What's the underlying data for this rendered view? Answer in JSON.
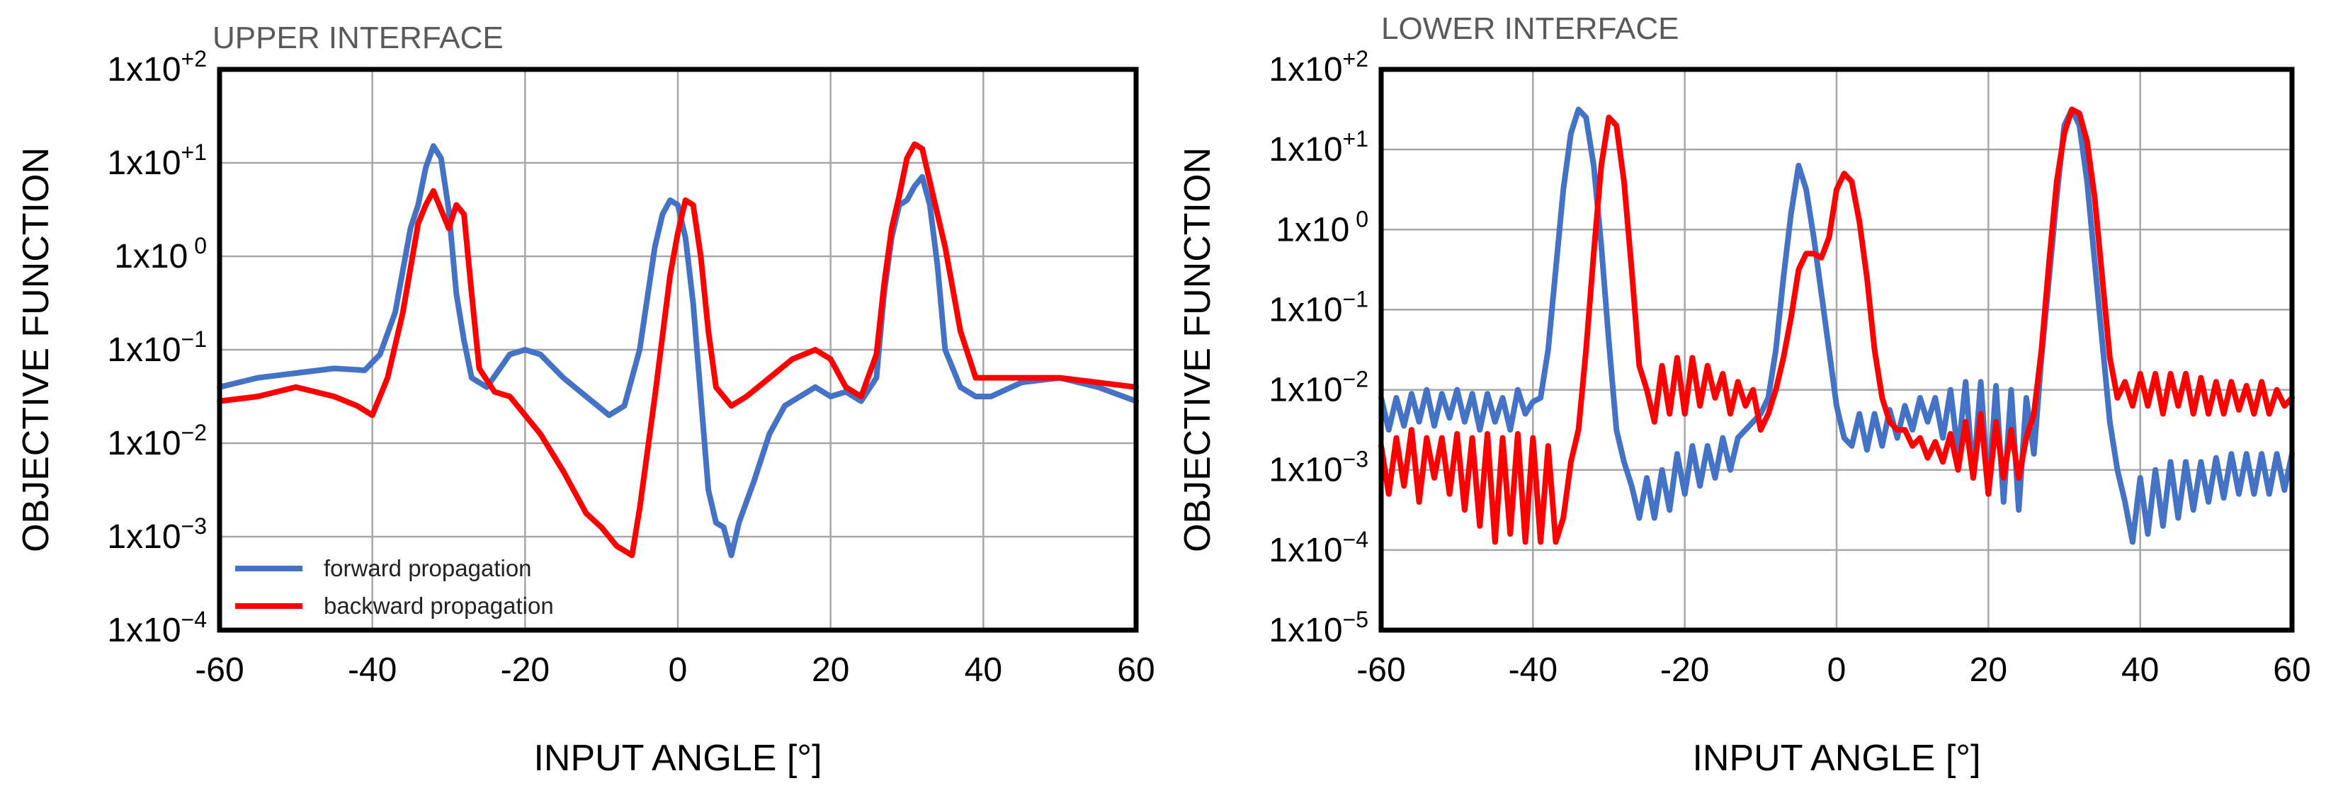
{
  "chart_data": [
    {
      "type": "line",
      "title": "UPPER INTERFACE",
      "xlabel": "INPUT ANGLE [°]",
      "ylabel": "OBJECTIVE FUNCTION",
      "xlim": [
        -60,
        60
      ],
      "ylim_log10": [
        -4,
        2
      ],
      "y_scale": "log",
      "grid": true,
      "x_ticks": [
        -60,
        -40,
        -20,
        0,
        20,
        40,
        60
      ],
      "x_tick_labels": [
        "-60",
        "-40",
        "-20",
        "0",
        "20",
        "40",
        "60"
      ],
      "y_ticks_log10": [
        2,
        1,
        0,
        -1,
        -2,
        -3,
        -4
      ],
      "y_tick_labels": [
        {
          "base": "1x10",
          "exp": "+2"
        },
        {
          "base": "1x10",
          "exp": "+1"
        },
        {
          "base": "1x10",
          "exp": " 0"
        },
        {
          "base": "1x10",
          "exp": "−1"
        },
        {
          "base": "1x10",
          "exp": "−2"
        },
        {
          "base": "1x10",
          "exp": "−3"
        },
        {
          "base": "1x10",
          "exp": "−4"
        }
      ],
      "legend": {
        "position": "bottom-left",
        "entries": [
          "forward propagation",
          "backward propagation"
        ]
      },
      "series": [
        {
          "name": "forward propagation",
          "color": "#4472C4",
          "x": [
            -60,
            -55,
            -50,
            -45,
            -41,
            -39,
            -37,
            -35,
            -34,
            -33,
            -32,
            -31,
            -30,
            -29,
            -28,
            -27,
            -25,
            -22,
            -20,
            -18,
            -15,
            -12,
            -9,
            -7,
            -5,
            -3,
            -2,
            -1,
            0,
            1,
            2,
            3,
            4,
            5,
            6,
            7,
            8,
            10,
            12,
            14,
            16,
            18,
            20,
            22,
            24,
            26,
            27,
            28,
            29,
            30,
            31,
            32,
            33,
            34,
            35,
            37,
            39,
            41,
            45,
            50,
            55,
            60
          ],
          "y_log10": [
            -1.4,
            -1.3,
            -1.25,
            -1.2,
            -1.22,
            -1.05,
            -0.6,
            0.3,
            0.55,
            0.95,
            1.18,
            1.05,
            0.5,
            -0.4,
            -0.9,
            -1.3,
            -1.4,
            -1.05,
            -1.0,
            -1.05,
            -1.3,
            -1.5,
            -1.7,
            -1.6,
            -1.0,
            0.1,
            0.45,
            0.6,
            0.55,
            0.2,
            -0.5,
            -1.5,
            -2.5,
            -2.85,
            -2.9,
            -3.2,
            -2.85,
            -2.4,
            -1.9,
            -1.6,
            -1.5,
            -1.4,
            -1.5,
            -1.45,
            -1.55,
            -1.3,
            -0.4,
            0.2,
            0.55,
            0.6,
            0.75,
            0.85,
            0.55,
            -0.1,
            -1.0,
            -1.4,
            -1.5,
            -1.5,
            -1.35,
            -1.3,
            -1.4,
            -1.55
          ]
        },
        {
          "name": "backward propagation",
          "color": "#FF0000",
          "x": [
            -60,
            -55,
            -50,
            -45,
            -42,
            -40,
            -38,
            -36,
            -34,
            -33,
            -32,
            -31,
            -30,
            -29,
            -28,
            -27,
            -26,
            -24,
            -22,
            -20,
            -18,
            -15,
            -12,
            -10,
            -8,
            -6,
            -5,
            -3,
            -1,
            0,
            1,
            2,
            3,
            4,
            5,
            7,
            9,
            12,
            15,
            18,
            20,
            22,
            24,
            26,
            27,
            28,
            29,
            30,
            31,
            32,
            33,
            34,
            35,
            37,
            39,
            41,
            45,
            50,
            55,
            60
          ],
          "y_log10": [
            -1.55,
            -1.5,
            -1.4,
            -1.5,
            -1.6,
            -1.7,
            -1.3,
            -0.6,
            0.35,
            0.55,
            0.7,
            0.5,
            0.3,
            0.55,
            0.45,
            -0.4,
            -1.2,
            -1.45,
            -1.5,
            -1.7,
            -1.9,
            -2.3,
            -2.75,
            -2.9,
            -3.1,
            -3.2,
            -2.7,
            -1.5,
            -0.2,
            0.25,
            0.6,
            0.55,
            0.0,
            -0.8,
            -1.4,
            -1.6,
            -1.5,
            -1.3,
            -1.1,
            -1.0,
            -1.1,
            -1.4,
            -1.5,
            -1.05,
            -0.3,
            0.3,
            0.65,
            1.05,
            1.2,
            1.15,
            0.8,
            0.45,
            0.1,
            -0.8,
            -1.3,
            -1.3,
            -1.3,
            -1.3,
            -1.35,
            -1.4
          ]
        }
      ]
    },
    {
      "type": "line",
      "title": "LOWER INTERFACE",
      "xlabel": "INPUT ANGLE [°]",
      "ylabel": "OBJECTIVE FUNCTION",
      "xlim": [
        -60,
        60
      ],
      "ylim_log10": [
        -5,
        2
      ],
      "y_scale": "log",
      "grid": true,
      "x_ticks": [
        -60,
        -40,
        -20,
        0,
        20,
        40,
        60
      ],
      "x_tick_labels": [
        "-60",
        "-40",
        "-20",
        "0",
        "20",
        "40",
        "60"
      ],
      "y_ticks_log10": [
        2,
        1,
        0,
        -1,
        -2,
        -3,
        -4,
        -5
      ],
      "y_tick_labels": [
        {
          "base": "1x10",
          "exp": "+2"
        },
        {
          "base": "1x10",
          "exp": "+1"
        },
        {
          "base": "1x10",
          "exp": " 0"
        },
        {
          "base": "1x10",
          "exp": "−1"
        },
        {
          "base": "1x10",
          "exp": "−2"
        },
        {
          "base": "1x10",
          "exp": "−3"
        },
        {
          "base": "1x10",
          "exp": "−4"
        },
        {
          "base": "1x10",
          "exp": "−5"
        }
      ],
      "series": [
        {
          "name": "forward propagation",
          "color": "#4472C4",
          "x": [
            -60,
            -59,
            -58,
            -57,
            -56,
            -55,
            -54,
            -53,
            -52,
            -51,
            -50,
            -49,
            -48,
            -47,
            -46,
            -45,
            -44,
            -43,
            -42,
            -41,
            -40,
            -39,
            -38,
            -37,
            -36,
            -35,
            -34,
            -33,
            -32,
            -31,
            -30,
            -29,
            -28,
            -27,
            -26,
            -25,
            -24,
            -23,
            -22,
            -21,
            -20,
            -19,
            -18,
            -17,
            -16,
            -15,
            -14,
            -13,
            -12,
            -11,
            -10,
            -9,
            -8,
            -7,
            -6,
            -5,
            -4,
            -3,
            -2,
            -1,
            0,
            1,
            2,
            3,
            4,
            5,
            6,
            7,
            8,
            9,
            10,
            11,
            12,
            13,
            14,
            15,
            16,
            17,
            18,
            19,
            20,
            21,
            22,
            23,
            24,
            25,
            26,
            27,
            28,
            29,
            30,
            31,
            32,
            33,
            34,
            35,
            36,
            37,
            38,
            39,
            40,
            41,
            42,
            43,
            44,
            45,
            46,
            47,
            48,
            49,
            50,
            51,
            52,
            53,
            54,
            55,
            56,
            57,
            58,
            59,
            60
          ],
          "y_log10": [
            -2.1,
            -2.5,
            -2.1,
            -2.45,
            -2.05,
            -2.4,
            -2.0,
            -2.45,
            -2.05,
            -2.35,
            -2.0,
            -2.4,
            -2.05,
            -2.5,
            -2.05,
            -2.4,
            -2.1,
            -2.5,
            -2.0,
            -2.3,
            -2.15,
            -2.1,
            -1.5,
            -0.5,
            0.5,
            1.2,
            1.5,
            1.4,
            0.8,
            -0.2,
            -1.4,
            -2.5,
            -2.9,
            -3.2,
            -3.6,
            -3.1,
            -3.6,
            -3.0,
            -3.5,
            -2.8,
            -3.3,
            -2.7,
            -3.2,
            -2.7,
            -3.1,
            -2.6,
            -3.0,
            -2.6,
            -2.5,
            -2.4,
            -2.3,
            -2.1,
            -1.5,
            -0.6,
            0.2,
            0.8,
            0.5,
            -0.1,
            -0.8,
            -1.5,
            -2.2,
            -2.6,
            -2.7,
            -2.3,
            -2.75,
            -2.3,
            -2.7,
            -2.25,
            -2.6,
            -2.2,
            -2.5,
            -2.1,
            -2.4,
            -2.1,
            -2.6,
            -2.0,
            -2.8,
            -1.9,
            -3.1,
            -1.9,
            -3.3,
            -1.95,
            -3.4,
            -2.0,
            -3.5,
            -2.1,
            -2.8,
            -1.6,
            -0.6,
            0.4,
            1.3,
            1.5,
            1.3,
            0.6,
            -0.4,
            -1.4,
            -2.4,
            -3.0,
            -3.4,
            -3.9,
            -3.1,
            -3.8,
            -3.0,
            -3.7,
            -2.9,
            -3.6,
            -2.9,
            -3.5,
            -2.9,
            -3.4,
            -2.85,
            -3.35,
            -2.8,
            -3.3,
            -2.8,
            -3.3,
            -2.8,
            -3.3,
            -2.8,
            -3.25,
            -2.8
          ]
        },
        {
          "name": "backward propagation",
          "color": "#FF0000",
          "x": [
            -60,
            -59,
            -58,
            -57,
            -56,
            -55,
            -54,
            -53,
            -52,
            -51,
            -50,
            -49,
            -48,
            -47,
            -46,
            -45,
            -44,
            -43,
            -42,
            -41,
            -40,
            -39,
            -38,
            -37,
            -36,
            -35,
            -34,
            -33,
            -32,
            -31,
            -30,
            -29,
            -28,
            -27,
            -26,
            -25,
            -24,
            -23,
            -22,
            -21,
            -20,
            -19,
            -18,
            -17,
            -16,
            -15,
            -14,
            -13,
            -12,
            -11,
            -10,
            -9,
            -8,
            -7,
            -6,
            -5,
            -4,
            -3,
            -2,
            -1,
            0,
            1,
            2,
            3,
            4,
            5,
            6,
            7,
            8,
            9,
            10,
            11,
            12,
            13,
            14,
            15,
            16,
            17,
            18,
            19,
            20,
            21,
            22,
            23,
            24,
            25,
            26,
            27,
            28,
            29,
            30,
            31,
            32,
            33,
            34,
            35,
            36,
            37,
            38,
            39,
            40,
            41,
            42,
            43,
            44,
            45,
            46,
            47,
            48,
            49,
            50,
            51,
            52,
            53,
            54,
            55,
            56,
            57,
            58,
            59,
            60
          ],
          "y_log10": [
            -2.7,
            -3.3,
            -2.6,
            -3.2,
            -2.5,
            -3.4,
            -2.6,
            -3.1,
            -2.6,
            -3.3,
            -2.55,
            -3.5,
            -2.6,
            -3.7,
            -2.55,
            -3.9,
            -2.6,
            -3.8,
            -2.55,
            -3.9,
            -2.6,
            -3.9,
            -2.7,
            -3.9,
            -3.6,
            -2.9,
            -2.5,
            -1.5,
            -0.3,
            0.8,
            1.4,
            1.3,
            0.6,
            -0.5,
            -1.7,
            -2.0,
            -2.4,
            -1.7,
            -2.3,
            -1.6,
            -2.3,
            -1.6,
            -2.2,
            -1.7,
            -2.1,
            -1.8,
            -2.3,
            -1.9,
            -2.2,
            -2.0,
            -2.5,
            -2.3,
            -2.0,
            -1.6,
            -1.1,
            -0.5,
            -0.3,
            -0.3,
            -0.35,
            -0.1,
            0.5,
            0.7,
            0.6,
            0.1,
            -0.6,
            -1.5,
            -2.1,
            -2.4,
            -2.5,
            -2.5,
            -2.7,
            -2.6,
            -2.85,
            -2.65,
            -2.9,
            -2.55,
            -3.0,
            -2.4,
            -3.1,
            -2.3,
            -3.3,
            -2.4,
            -3.1,
            -2.5,
            -3.1,
            -2.6,
            -2.3,
            -1.5,
            -0.4,
            0.6,
            1.2,
            1.5,
            1.45,
            1.1,
            0.4,
            -0.6,
            -1.6,
            -2.1,
            -1.9,
            -2.2,
            -1.8,
            -2.2,
            -1.8,
            -2.3,
            -1.8,
            -2.2,
            -1.8,
            -2.3,
            -1.85,
            -2.3,
            -1.9,
            -2.3,
            -1.9,
            -2.25,
            -1.95,
            -2.3,
            -1.9,
            -2.3,
            -2.0,
            -2.2,
            -2.1
          ]
        }
      ]
    }
  ]
}
